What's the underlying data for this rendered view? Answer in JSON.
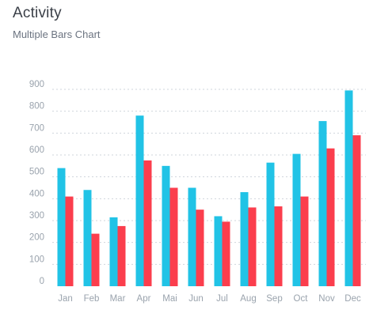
{
  "header": {
    "title": "Activity",
    "subtitle": "Multiple Bars Chart"
  },
  "colors": {
    "series1": "#21c3e6",
    "series2": "#fb3e4d",
    "grid": "#cfd5db",
    "tick_text": "#9aa3ad"
  },
  "chart_data": {
    "type": "bar",
    "title": "",
    "xlabel": "",
    "ylabel": "",
    "categories": [
      "Jan",
      "Feb",
      "Mar",
      "Apr",
      "Mai",
      "Jun",
      "Jul",
      "Aug",
      "Sep",
      "Oct",
      "Nov",
      "Dec"
    ],
    "series": [
      {
        "values": [
          540,
          440,
          315,
          780,
          550,
          450,
          320,
          430,
          565,
          605,
          755,
          895
        ]
      },
      {
        "values": [
          410,
          240,
          275,
          575,
          450,
          350,
          295,
          360,
          365,
          410,
          630,
          690
        ]
      }
    ],
    "yticks": [
      0,
      100,
      200,
      300,
      400,
      500,
      600,
      700,
      800,
      900
    ],
    "ylim": [
      0,
      900
    ],
    "grid": true,
    "legend": "none"
  }
}
